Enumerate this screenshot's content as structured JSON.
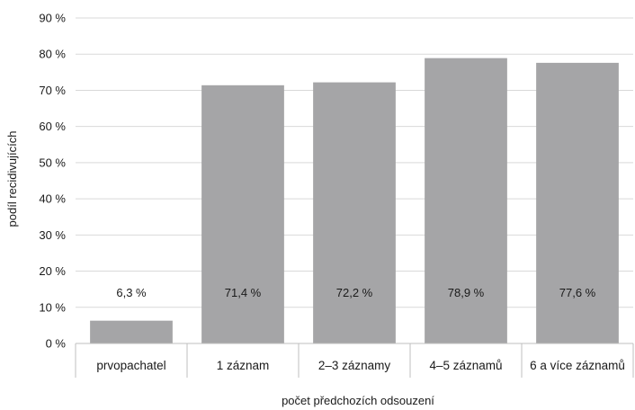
{
  "chart_data": {
    "type": "bar",
    "categories": [
      "prvopachatel",
      "1 záznam",
      "2–3 záznamy",
      "4–5 záznamů",
      "6 a více záznamů"
    ],
    "values": [
      6.3,
      71.4,
      72.2,
      78.9,
      77.6
    ],
    "data_labels": [
      "6,3 %",
      "71,4 %",
      "72,2 %",
      "78,9 %",
      "77,6 %"
    ],
    "title": "",
    "xlabel": "počet předchozích odsouzení",
    "ylabel": "podíl recidivujících",
    "ylim": [
      0,
      90
    ],
    "yticks": [
      0,
      10,
      20,
      30,
      40,
      50,
      60,
      70,
      80,
      90
    ],
    "ytick_labels": [
      "0 %",
      "10 %",
      "20 %",
      "30 %",
      "40 %",
      "50 %",
      "60 %",
      "70 %",
      "80 %",
      "90 %"
    ],
    "grid": "horizontal",
    "legend": "none",
    "colors": {
      "bar": "#a5a5a7",
      "grid": "#d9d9d9",
      "axis": "#bfbfbf"
    }
  }
}
